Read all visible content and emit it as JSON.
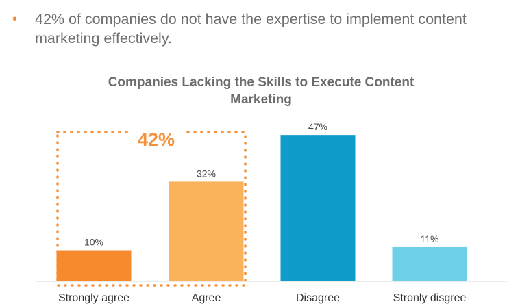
{
  "bullet": {
    "symbol": "•",
    "text": "42% of companies do not have the expertise to implement content marketing effectively."
  },
  "highlight": {
    "label": "42%",
    "color": "#f7923a"
  },
  "chart_data": {
    "type": "bar",
    "title": "Companies Lacking the Skills to Execute Content Marketing",
    "categories": [
      "Strongly agree",
      "Agree",
      "Disagree",
      "Stronly disgree"
    ],
    "values": [
      10,
      32,
      47,
      11
    ],
    "value_labels": [
      "10%",
      "32%",
      "47%",
      "11%"
    ],
    "colors": [
      "#f7892e",
      "#fbb35b",
      "#0f9ccb",
      "#6dd0e8"
    ],
    "ylim": [
      0,
      50
    ],
    "grid": false,
    "legend": "none",
    "xlabel": "",
    "ylabel": ""
  }
}
